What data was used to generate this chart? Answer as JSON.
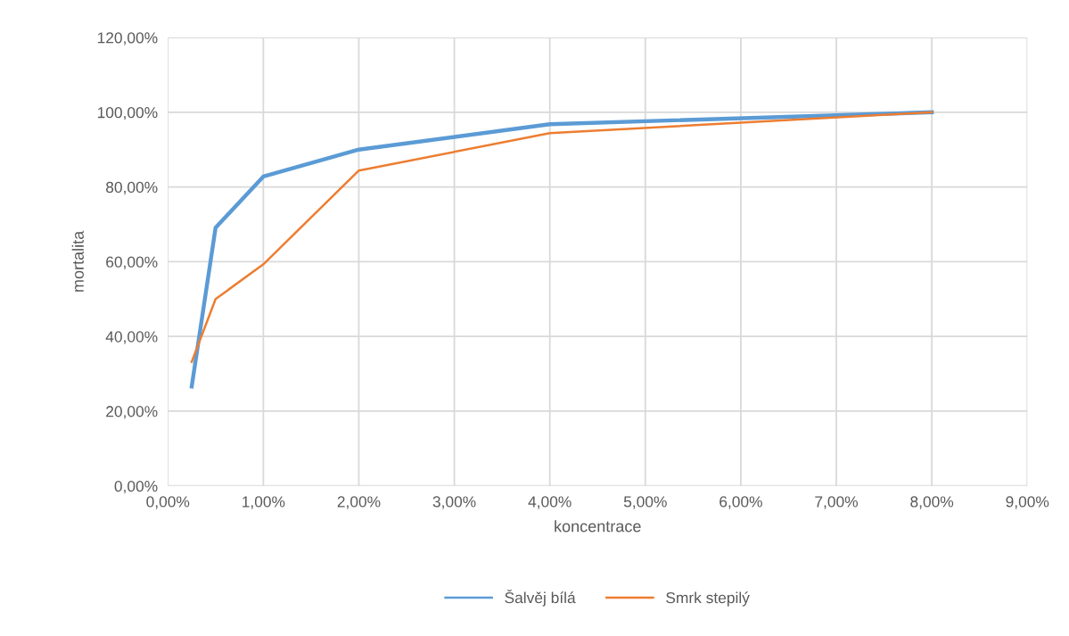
{
  "chart_data": {
    "type": "line",
    "xlabel": "koncentrace",
    "ylabel": "mortalita",
    "x": [
      0.25,
      0.5,
      1,
      2,
      4,
      8
    ],
    "series": [
      {
        "name": "Šalvěj bílá",
        "color": "#5b9bd5",
        "values": [
          26.6,
          69.1,
          82.8,
          90.0,
          96.8,
          100
        ]
      },
      {
        "name": "Smrk stepilý",
        "color": "#ed7d31",
        "values": [
          33.2,
          50.0,
          59.3,
          84.4,
          94.4,
          100
        ]
      }
    ],
    "xlim": [
      0,
      9
    ],
    "xticks": [
      {
        "value": 0,
        "label": "0,00%"
      },
      {
        "value": 1,
        "label": "1,00%"
      },
      {
        "value": 2,
        "label": "2,00%"
      },
      {
        "value": 3,
        "label": "3,00%"
      },
      {
        "value": 4,
        "label": "4,00%"
      },
      {
        "value": 5,
        "label": "5,00%"
      },
      {
        "value": 6,
        "label": "6,00%"
      },
      {
        "value": 7,
        "label": "7,00%"
      },
      {
        "value": 8,
        "label": "8,00%"
      },
      {
        "value": 9,
        "label": "9,00%"
      }
    ],
    "ylim": [
      0,
      120
    ],
    "yticks": [
      {
        "value": 0,
        "label": "0,00%"
      },
      {
        "value": 20,
        "label": "20,00%"
      },
      {
        "value": 40,
        "label": "40,00%"
      },
      {
        "value": 60,
        "label": "60,00%"
      },
      {
        "value": 80,
        "label": "80,00%"
      },
      {
        "value": 100,
        "label": "100,00%"
      },
      {
        "value": 120,
        "label": "120,00%"
      }
    ],
    "grid": true,
    "legend": "bottom",
    "marker": "none",
    "line_style": "solid"
  }
}
